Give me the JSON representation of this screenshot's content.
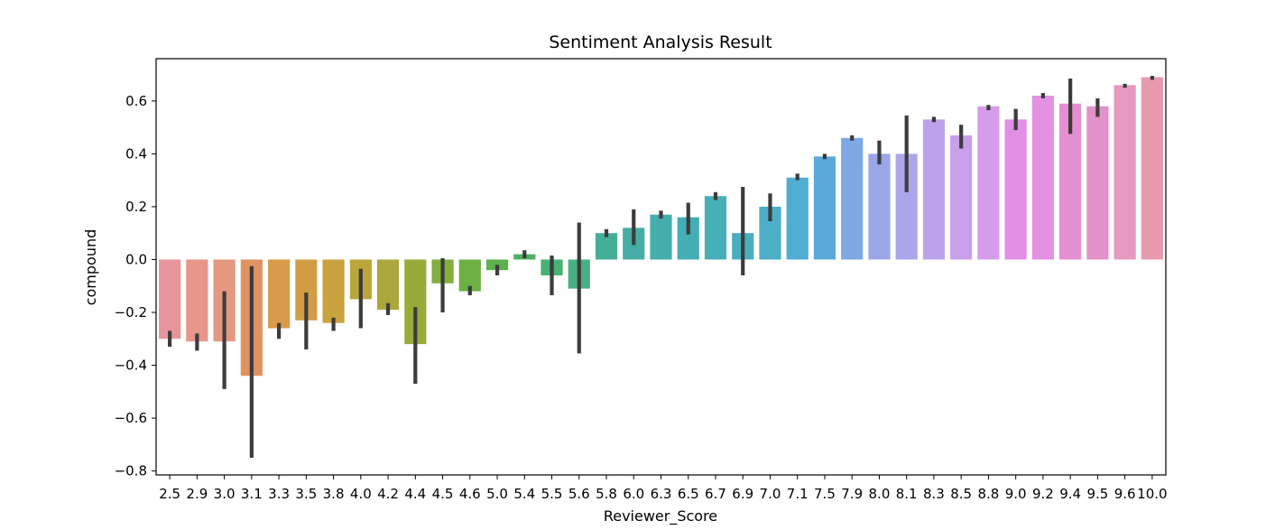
{
  "chart_data": {
    "type": "bar",
    "title": "Sentiment Analysis Result",
    "xlabel": "Reviewer_Score",
    "ylabel": "compound",
    "ylim": [
      -0.815,
      0.76
    ],
    "yticks": [
      -0.8,
      -0.6,
      -0.4,
      -0.2,
      0.0,
      0.2,
      0.4,
      0.6
    ],
    "ytick_labels": [
      "−0.8",
      "−0.6",
      "−0.4",
      "−0.2",
      "0.0",
      "0.2",
      "0.4",
      "0.6"
    ],
    "grid": false,
    "legend": "none",
    "categories": [
      "2.5",
      "2.9",
      "3.0",
      "3.1",
      "3.3",
      "3.5",
      "3.8",
      "4.0",
      "4.2",
      "4.4",
      "4.5",
      "4.6",
      "5.0",
      "5.4",
      "5.5",
      "5.6",
      "5.8",
      "6.0",
      "6.3",
      "6.5",
      "6.7",
      "6.9",
      "7.0",
      "7.1",
      "7.5",
      "7.9",
      "8.0",
      "8.1",
      "8.3",
      "8.5",
      "8.8",
      "9.0",
      "9.2",
      "9.4",
      "9.5",
      "9.6",
      "10.0"
    ],
    "values": [
      -0.3,
      -0.31,
      -0.31,
      -0.44,
      -0.26,
      -0.23,
      -0.24,
      -0.15,
      -0.19,
      -0.32,
      -0.09,
      -0.12,
      -0.04,
      0.02,
      -0.06,
      -0.11,
      0.1,
      0.12,
      0.17,
      0.16,
      0.24,
      0.1,
      0.2,
      0.31,
      0.39,
      0.46,
      0.4,
      0.4,
      0.53,
      0.47,
      0.58,
      0.53,
      0.62,
      0.59,
      0.58,
      0.66,
      0.69
    ],
    "ci_low": [
      -0.33,
      -0.345,
      -0.49,
      -0.75,
      -0.3,
      -0.34,
      -0.27,
      -0.26,
      -0.21,
      -0.47,
      -0.2,
      -0.135,
      -0.06,
      0.005,
      -0.135,
      -0.355,
      0.085,
      0.055,
      0.155,
      0.095,
      0.225,
      -0.06,
      0.145,
      0.3,
      0.38,
      0.45,
      0.36,
      0.255,
      0.52,
      0.42,
      0.565,
      0.49,
      0.61,
      0.475,
      0.54,
      0.65,
      0.68
    ],
    "ci_high": [
      -0.27,
      -0.28,
      -0.12,
      -0.025,
      -0.24,
      -0.125,
      -0.22,
      -0.035,
      -0.165,
      -0.18,
      0.005,
      -0.1,
      -0.02,
      0.035,
      0.015,
      0.14,
      0.115,
      0.19,
      0.185,
      0.215,
      0.255,
      0.275,
      0.25,
      0.325,
      0.4,
      0.47,
      0.45,
      0.545,
      0.54,
      0.51,
      0.585,
      0.57,
      0.63,
      0.685,
      0.61,
      0.665,
      0.695
    ],
    "colors": [
      "#E8949C",
      "#E8958A",
      "#E4987F",
      "#DF9361",
      "#D99A4A",
      "#D29E45",
      "#C9A33F",
      "#BBA63A",
      "#AAA83A",
      "#99AA3A",
      "#82AF3E",
      "#6DB043",
      "#5CB04E",
      "#4CB160",
      "#48B275",
      "#47B085",
      "#45AE98",
      "#45ADA5",
      "#45AEAD",
      "#45ADB5",
      "#46AFB8",
      "#49AFBF",
      "#4CAFC8",
      "#50ADD3",
      "#5AABDC",
      "#7DA8E4",
      "#9AA6E8",
      "#ABA6EC",
      "#BBA3EC",
      "#C99FEB",
      "#D59DE9",
      "#E08EE6",
      "#E391E0",
      "#E38FD1",
      "#E292C8",
      "#E698BE",
      "#E79AAE"
    ],
    "errorbar_color": "#3c3c3c"
  }
}
